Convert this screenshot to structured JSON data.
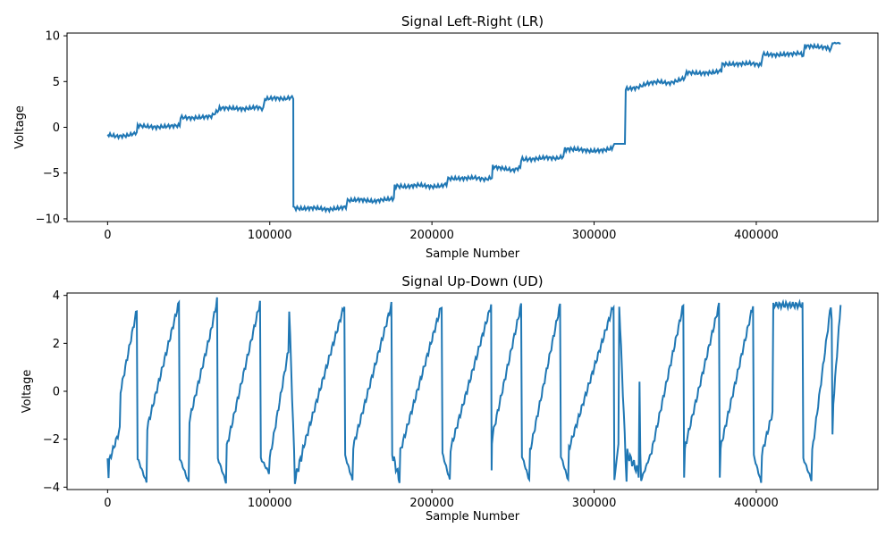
{
  "chart_data": [
    {
      "type": "line",
      "title": "Signal Left-Right (LR)",
      "xlabel": "Sample Number",
      "ylabel": "Voltage",
      "xlim": [
        -25000,
        475000
      ],
      "ylim": [
        -10.3,
        10.3
      ],
      "xticks": [
        0,
        100000,
        200000,
        300000,
        400000
      ],
      "yticks": [
        -10,
        -5,
        0,
        5,
        10
      ],
      "grid": false,
      "color": "#1f77b4",
      "series": [
        {
          "x": [
            0,
            6000,
            12000,
            18000,
            18500,
            24000,
            30000,
            36000,
            44500,
            45000,
            52000,
            58000,
            64000,
            68500,
            69000,
            76000,
            84000,
            92000,
            96000,
            97000,
            103000,
            109000,
            114500,
            114600,
            120000,
            128000,
            136000,
            144000,
            147000,
            148000,
            156000,
            164000,
            170000,
            176500,
            177000,
            184000,
            192000,
            200000,
            206000,
            209000,
            210000,
            218000,
            226000,
            233000,
            237000,
            237500,
            244000,
            250000,
            254500,
            255000,
            262000,
            270000,
            277000,
            281000,
            282000,
            290000,
            298000,
            306000,
            311000,
            312500,
            319000,
            319500,
            326000,
            333000,
            340000,
            346000,
            350000,
            356000,
            357000,
            366000,
            374000,
            378500,
            379000,
            388000,
            396000,
            403000,
            404000,
            412000,
            420000,
            427000,
            429000,
            430000,
            438000,
            444000,
            446000,
            447000,
            452000
          ],
          "y": [
            -0.8,
            -1.0,
            -0.9,
            -0.6,
            0.2,
            0.1,
            0.0,
            0.1,
            0.2,
            1.1,
            1.0,
            1.1,
            1.2,
            1.9,
            2.1,
            2.1,
            2.0,
            2.2,
            2.0,
            3.1,
            3.2,
            3.1,
            3.3,
            -8.8,
            -8.9,
            -8.8,
            -9.0,
            -8.8,
            -8.7,
            -8.0,
            -7.9,
            -8.1,
            -7.9,
            -7.8,
            -6.4,
            -6.5,
            -6.3,
            -6.5,
            -6.4,
            -6.2,
            -5.6,
            -5.6,
            -5.5,
            -5.7,
            -5.5,
            -4.3,
            -4.5,
            -4.7,
            -4.4,
            -3.5,
            -3.5,
            -3.3,
            -3.4,
            -3.2,
            -2.4,
            -2.4,
            -2.6,
            -2.5,
            -2.3,
            -1.8,
            -1.8,
            4.2,
            4.3,
            4.8,
            5.0,
            4.8,
            5.0,
            5.4,
            6.0,
            5.9,
            6.0,
            6.2,
            6.9,
            6.9,
            7.0,
            6.8,
            8.0,
            7.9,
            8.0,
            8.1,
            7.8,
            8.9,
            8.8,
            8.7,
            8.4,
            9.2,
            9.2
          ],
          "amplitude": [
            0.4,
            0.4,
            0.4,
            0.3,
            0.4,
            0.4,
            0.4,
            0.4,
            0.4,
            0.4,
            0.4,
            0.4,
            0.4,
            0.4,
            0.4,
            0.4,
            0.4,
            0.4,
            0.4,
            0.4,
            0.4,
            0.4,
            0.4,
            0.5,
            0.4,
            0.4,
            0.4,
            0.4,
            0.4,
            0.4,
            0.4,
            0.4,
            0.4,
            0.4,
            0.5,
            0.4,
            0.4,
            0.4,
            0.4,
            0.4,
            0.4,
            0.4,
            0.4,
            0.4,
            0.4,
            0.4,
            0.4,
            0.4,
            0.4,
            0.5,
            0.4,
            0.4,
            0.4,
            0.4,
            0.5,
            0.4,
            0.4,
            0.4,
            0.4,
            0.0,
            0.0,
            0.4,
            0.4,
            0.4,
            0.4,
            0.4,
            0.4,
            0.4,
            0.4,
            0.4,
            0.4,
            0.4,
            0.4,
            0.4,
            0.4,
            0.4,
            0.4,
            0.4,
            0.4,
            0.4,
            0.4,
            0.4,
            0.4,
            0.4,
            0.4,
            0.1,
            0.1
          ]
        }
      ]
    },
    {
      "type": "line",
      "title": "Signal Up-Down (UD)",
      "xlabel": "Sample Number",
      "ylabel": "Voltage",
      "xlim": [
        -25000,
        475000
      ],
      "ylim": [
        -4.1,
        4.1
      ],
      "xticks": [
        0,
        100000,
        200000,
        300000,
        400000
      ],
      "yticks": [
        -4,
        -2,
        0,
        2,
        4
      ],
      "grid": false,
      "color": "#1f77b4",
      "series": [
        {
          "x": [
            0,
            600,
            1000,
            7500,
            8000,
            18000,
            18500,
            24000,
            24500,
            44000,
            44500,
            50000,
            50500,
            63000,
            64000,
            67500,
            68000,
            73000,
            73500,
            94000,
            94500,
            99500,
            100000,
            111500,
            112000,
            115000,
            115500,
            120000,
            120500,
            146000,
            146500,
            151000,
            151500,
            175000,
            175500,
            180000,
            180500,
            206000,
            206500,
            211000,
            211500,
            236500,
            236800,
            237000,
            237500,
            255000,
            255500,
            260000,
            260500,
            279000,
            279500,
            284000,
            284500,
            312000,
            312500,
            315000,
            315500,
            320000,
            320500,
            327500,
            328000,
            328500,
            329000,
            335000,
            335500,
            355000,
            355500,
            356000,
            356500,
            377000,
            377500,
            378000,
            378500,
            398000,
            398500,
            403000,
            403500,
            410000,
            410500,
            428500,
            429000,
            434000,
            434500,
            446000,
            446500,
            447000,
            447500,
            452000
          ],
          "y": [
            -2.8,
            -3.5,
            -2.9,
            -1.6,
            0.0,
            3.4,
            -2.8,
            -3.8,
            -1.5,
            3.7,
            -2.8,
            -3.8,
            -1.2,
            2.3,
            2.6,
            3.8,
            -2.8,
            -3.8,
            -2.3,
            3.7,
            -2.8,
            -3.4,
            -2.8,
            1.7,
            3.4,
            -2.6,
            -3.7,
            -2.6,
            -2.4,
            3.6,
            -2.7,
            -3.7,
            -2.3,
            3.6,
            -2.6,
            -3.7,
            -2.5,
            3.6,
            -2.6,
            -3.7,
            -2.4,
            3.6,
            -3.3,
            -2.2,
            -1.8,
            3.6,
            -2.7,
            -3.7,
            -2.5,
            3.6,
            -2.7,
            -3.7,
            -2.4,
            3.6,
            -3.7,
            -2.2,
            3.6,
            -3.7,
            -2.6,
            -3.4,
            0.4,
            -2.6,
            -3.7,
            -2.6,
            -2.5,
            3.6,
            -3.6,
            -2.4,
            -2.2,
            3.6,
            -3.6,
            -2.4,
            -2.2,
            3.6,
            -2.7,
            -3.8,
            -2.6,
            -0.9,
            3.6,
            3.6,
            -2.8,
            -3.7,
            -2.5,
            3.6,
            3.0,
            -1.8,
            -0.5,
            3.6
          ],
          "amplitude": [
            0.25,
            0.25,
            0.25,
            0.25,
            0.25,
            0.25,
            0.1,
            0.1,
            0.25,
            0.25,
            0.1,
            0.1,
            0.25,
            0.25,
            0.25,
            0.25,
            0.1,
            0.1,
            0.25,
            0.25,
            0.1,
            0.1,
            0.25,
            0.25,
            0.25,
            0.4,
            0.4,
            0.4,
            0.25,
            0.25,
            0.1,
            0.1,
            0.25,
            0.25,
            0.4,
            0.4,
            0.25,
            0.25,
            0.1,
            0.1,
            0.25,
            0.25,
            0.0,
            0.0,
            0.25,
            0.25,
            0.1,
            0.1,
            0.25,
            0.25,
            0.1,
            0.1,
            0.25,
            0.25,
            0.0,
            0.0,
            0.25,
            0.4,
            0.4,
            0.4,
            0.0,
            0.0,
            0.1,
            0.1,
            0.25,
            0.25,
            0.0,
            0.0,
            0.25,
            0.25,
            0.0,
            0.0,
            0.25,
            0.25,
            0.1,
            0.1,
            0.25,
            0.25,
            0.25,
            0.25,
            0.1,
            0.1,
            0.25,
            0.25,
            0.0,
            0.0,
            0.25,
            0.25
          ]
        }
      ]
    }
  ]
}
